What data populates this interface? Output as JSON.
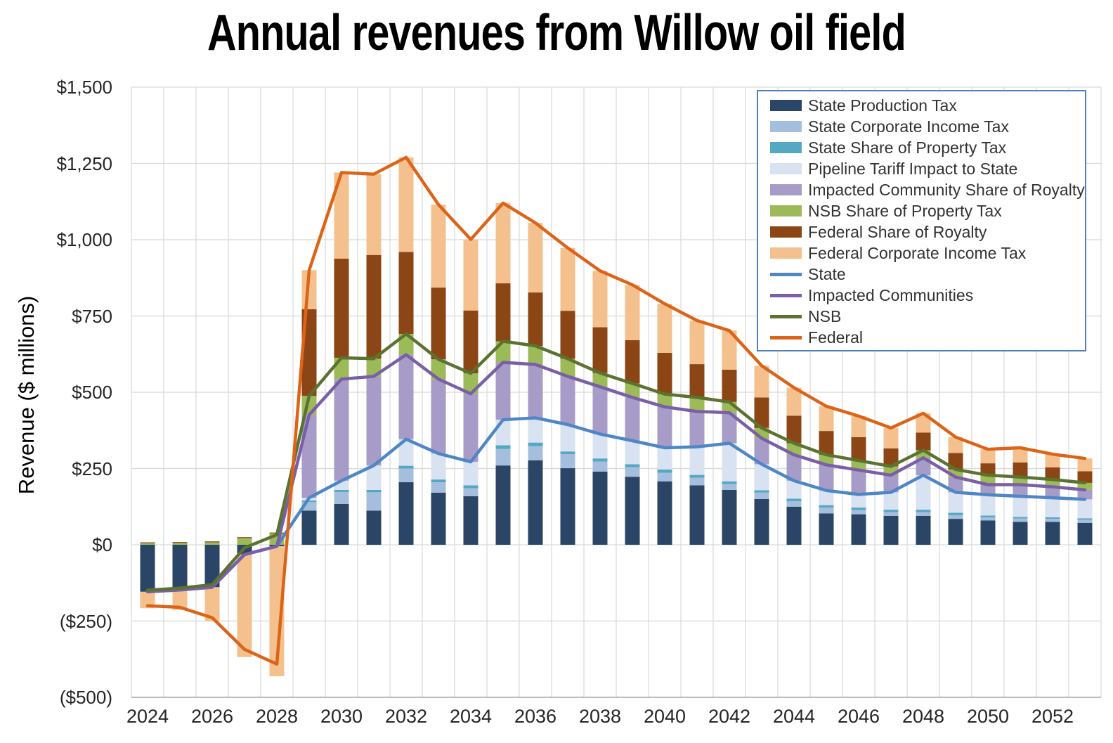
{
  "title": "Annual revenues from Willow oil field",
  "y_axis": {
    "label": "Revenue ($ millions)",
    "ticks": [
      {
        "value": 1500,
        "label": "$1,500"
      },
      {
        "value": 1250,
        "label": "$1,250"
      },
      {
        "value": 1000,
        "label": "$1,000"
      },
      {
        "value": 750,
        "label": "$750"
      },
      {
        "value": 500,
        "label": "$500"
      },
      {
        "value": 250,
        "label": "$250"
      },
      {
        "value": 0,
        "label": "$0"
      },
      {
        "value": -250,
        "label": "($250)"
      },
      {
        "value": -500,
        "label": "($500)"
      }
    ]
  },
  "x_axis": {
    "tick_years": [
      2024,
      2026,
      2028,
      2030,
      2032,
      2034,
      2036,
      2038,
      2040,
      2042,
      2044,
      2046,
      2048,
      2050,
      2052
    ]
  },
  "chart_data": {
    "type": "bar",
    "stacked": true,
    "grid": true,
    "legend_position": "top-right",
    "title": "Annual revenues from Willow oil field",
    "xlabel": "",
    "ylabel": "Revenue ($ millions)",
    "ylim": [
      -500,
      1500
    ],
    "x": [
      2024,
      2025,
      2026,
      2027,
      2028,
      2029,
      2030,
      2031,
      2032,
      2033,
      2034,
      2035,
      2036,
      2037,
      2038,
      2039,
      2040,
      2041,
      2042,
      2043,
      2044,
      2045,
      2046,
      2047,
      2048,
      2049,
      2050,
      2051,
      2052,
      2053
    ],
    "series": [
      {
        "key": "state-production-tax",
        "name": "State Production Tax",
        "color": "#2b4566",
        "values": [
          -154,
          -148,
          -139,
          -32,
          -5,
          112,
          134,
          112,
          205,
          171,
          159,
          260,
          277,
          251,
          240,
          223,
          208,
          195,
          180,
          150,
          125,
          103,
          100,
          95,
          95,
          85,
          80,
          75,
          75,
          72
        ]
      },
      {
        "key": "state-corporate-income-tax",
        "name": "State Corporate Income Tax",
        "color": "#a6bedd",
        "values": [
          0,
          0,
          0,
          0,
          0,
          28,
          39,
          60,
          45,
          34,
          26,
          54,
          46,
          46,
          33,
          31,
          28,
          25,
          19,
          21,
          18,
          19,
          14,
          12,
          12,
          12,
          10,
          11,
          10,
          10
        ]
      },
      {
        "key": "state-share-of-property-tax",
        "name": "State Share of Property Tax",
        "color": "#55a8c2",
        "values": [
          0,
          0,
          0,
          0,
          0,
          5,
          7,
          8,
          9,
          9,
          10,
          12,
          12,
          9,
          10,
          10,
          11,
          9,
          9,
          8,
          8,
          8,
          8,
          8,
          8,
          8,
          6,
          5,
          5,
          5
        ]
      },
      {
        "key": "pipeline-tariff-impact-to-state",
        "name": "Pipeline Tariff Impact to State",
        "color": "#d9e2f0",
        "values": [
          0,
          0,
          0,
          0,
          0,
          9,
          30,
          80,
          87,
          85,
          77,
          84,
          81,
          88,
          80,
          77,
          71,
          92,
          125,
          85,
          59,
          48,
          43,
          57,
          113,
          67,
          68,
          68,
          64,
          62
        ]
      },
      {
        "key": "impacted-community-share-of-royalty",
        "name": "Impacted Community Share of Royalty",
        "color": "#a79cc8",
        "values": [
          0,
          0,
          0,
          0,
          0,
          272,
          333,
          292,
          277,
          244,
          223,
          188,
          175,
          158,
          155,
          142,
          134,
          116,
          100,
          85,
          85,
          84,
          80,
          56,
          57,
          50,
          33,
          38,
          36,
          31
        ]
      },
      {
        "key": "nsb-share-of-property-tax",
        "name": "NSB Share of Property Tax",
        "color": "#9cba58",
        "values": [
          5,
          6,
          8,
          22,
          38,
          62,
          70,
          58,
          68,
          65,
          67,
          69,
          61,
          58,
          45,
          46,
          42,
          46,
          35,
          34,
          38,
          33,
          31,
          29,
          25,
          25,
          31,
          25,
          24,
          23
        ]
      },
      {
        "key": "federal-share-of-royalty",
        "name": "Federal Share of Royalty",
        "color": "#8c4616",
        "values": [
          3,
          3,
          3,
          3,
          2,
          284,
          325,
          340,
          269,
          235,
          206,
          190,
          175,
          157,
          150,
          142,
          135,
          109,
          106,
          100,
          90,
          78,
          77,
          59,
          58,
          54,
          39,
          48,
          40,
          38
        ]
      },
      {
        "key": "federal-corporate-income-tax",
        "name": "Federal Corporate Income Tax",
        "color": "#f4c08e",
        "values": [
          -54,
          -66,
          -111,
          -336,
          -426,
          128,
          282,
          265,
          310,
          272,
          233,
          263,
          228,
          206,
          185,
          181,
          161,
          143,
          128,
          104,
          92,
          81,
          69,
          67,
          63,
          52,
          46,
          48,
          43,
          42
        ]
      }
    ],
    "line_series": [
      {
        "key": "state",
        "name": "State",
        "color": "#4f86c6",
        "values": [
          -154,
          -148,
          -139,
          -32,
          -5,
          154,
          210,
          260,
          346,
          299,
          272,
          410,
          416,
          394,
          363,
          341,
          318,
          321,
          333,
          264,
          210,
          178,
          165,
          172,
          228,
          172,
          164,
          159,
          154,
          149
        ]
      },
      {
        "key": "impacted-communities",
        "name": "Impacted Communities",
        "color": "#7a5ea6",
        "values": [
          -154,
          -148,
          -139,
          -32,
          -5,
          426,
          543,
          552,
          623,
          543,
          495,
          598,
          591,
          552,
          518,
          483,
          452,
          437,
          433,
          349,
          295,
          262,
          245,
          228,
          285,
          222,
          197,
          197,
          190,
          180
        ]
      },
      {
        "key": "nsb",
        "name": "NSB",
        "color": "#5b7331",
        "values": [
          -149,
          -142,
          -131,
          -10,
          33,
          488,
          613,
          610,
          691,
          608,
          562,
          667,
          652,
          610,
          563,
          529,
          494,
          483,
          468,
          383,
          333,
          295,
          276,
          257,
          310,
          247,
          228,
          222,
          214,
          203
        ]
      },
      {
        "key": "federal",
        "name": "Federal",
        "color": "#dc6418",
        "values": [
          -200,
          -205,
          -239,
          -343,
          -391,
          900,
          1220,
          1215,
          1270,
          1115,
          1001,
          1120,
          1055,
          973,
          898,
          852,
          790,
          735,
          702,
          587,
          515,
          454,
          422,
          383,
          431,
          353,
          313,
          318,
          297,
          283
        ]
      }
    ]
  },
  "legend": {
    "items": [
      {
        "label": "State Production Tax",
        "type": "bar",
        "color": "#2b4566"
      },
      {
        "label": "State Corporate Income Tax",
        "type": "bar",
        "color": "#a6bedd"
      },
      {
        "label": "State Share of Property Tax",
        "type": "bar",
        "color": "#55a8c2"
      },
      {
        "label": "Pipeline Tariff Impact to State",
        "type": "bar",
        "color": "#d9e2f0"
      },
      {
        "label": "Impacted Community Share of Royalty",
        "type": "bar",
        "color": "#a79cc8"
      },
      {
        "label": "NSB Share of Property Tax",
        "type": "bar",
        "color": "#9cba58"
      },
      {
        "label": "Federal Share of Royalty",
        "type": "bar",
        "color": "#8c4616"
      },
      {
        "label": "Federal Corporate Income Tax",
        "type": "bar",
        "color": "#f4c08e"
      },
      {
        "label": "State",
        "type": "line",
        "color": "#4f86c6"
      },
      {
        "label": "Impacted Communities",
        "type": "line",
        "color": "#7a5ea6"
      },
      {
        "label": "NSB",
        "type": "line",
        "color": "#5b7331"
      },
      {
        "label": "Federal",
        "type": "line",
        "color": "#dc6418"
      }
    ]
  },
  "style_colors": {
    "gridline": "#d9d9d9",
    "axis_line": "#a6a6a6",
    "legend_border": "#4f81bd",
    "background": "#ffffff"
  }
}
